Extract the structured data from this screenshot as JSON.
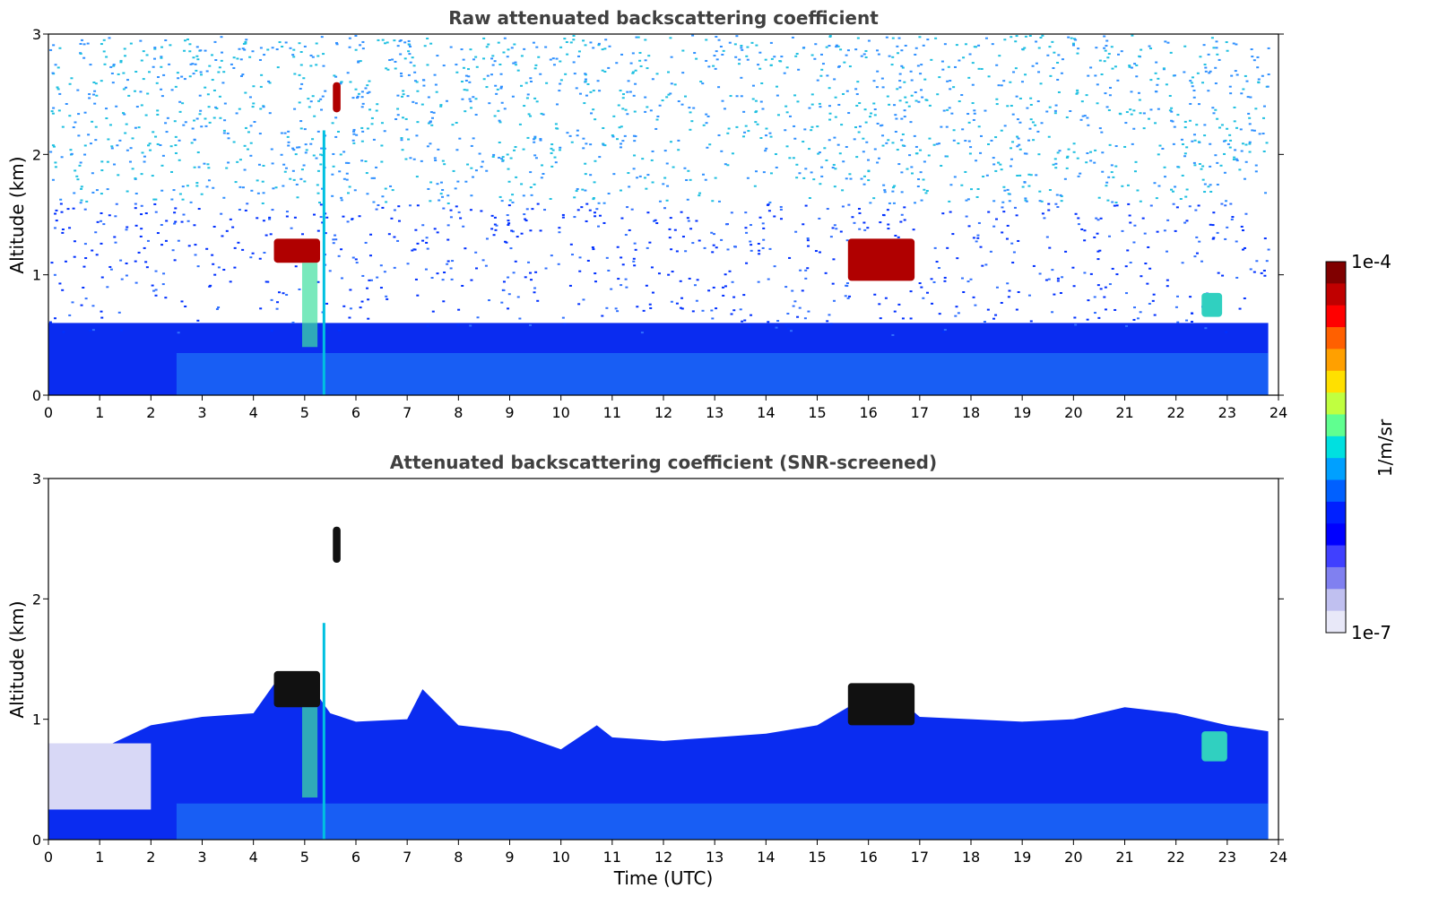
{
  "chart_data": [
    {
      "type": "heatmap",
      "title": "Raw attenuated backscattering coefficient",
      "xlabel": "",
      "ylabel": "Altitude (km)",
      "xlim": [
        0,
        24
      ],
      "ylim": [
        0,
        3
      ],
      "xticks": [
        "0",
        "1",
        "2",
        "3",
        "4",
        "5",
        "6",
        "7",
        "8",
        "9",
        "10",
        "11",
        "12",
        "13",
        "14",
        "15",
        "16",
        "17",
        "18",
        "19",
        "20",
        "21",
        "22",
        "23",
        "24"
      ],
      "yticks": [
        "0",
        "1",
        "2",
        "3"
      ],
      "colorscale": "jet (1e-7 to 1e-4, log)",
      "features": [
        {
          "time": [
            0,
            24
          ],
          "alt": [
            0,
            0.6
          ],
          "level": "low (1e-6)"
        },
        {
          "time": [
            4.4,
            5.3
          ],
          "alt": [
            1.1,
            1.3
          ],
          "level": "high (1e-4)"
        },
        {
          "time": [
            5.55,
            5.7
          ],
          "alt": [
            2.35,
            2.6
          ],
          "level": "high (1e-4)"
        },
        {
          "time": [
            15.6,
            16.9
          ],
          "alt": [
            0.95,
            1.3
          ],
          "level": "high (1e-4)"
        },
        {
          "time": [
            22.5,
            22.9
          ],
          "alt": [
            0.65,
            0.85
          ],
          "level": "medium (1e-5)"
        }
      ]
    },
    {
      "type": "heatmap",
      "title": "Attenuated backscattering coefficient (SNR-screened)",
      "xlabel": "Time (UTC)",
      "ylabel": "Altitude (km)",
      "xlim": [
        0,
        24
      ],
      "ylim": [
        0,
        3
      ],
      "xticks": [
        "0",
        "1",
        "2",
        "3",
        "4",
        "5",
        "6",
        "7",
        "8",
        "9",
        "10",
        "11",
        "12",
        "13",
        "14",
        "15",
        "16",
        "17",
        "18",
        "19",
        "20",
        "21",
        "22",
        "23",
        "24"
      ],
      "yticks": [
        "0",
        "1",
        "2",
        "3"
      ],
      "colorscale": "jet (1e-7 to 1e-4, log)",
      "boundary_layer_top_km": [
        [
          0,
          0.7
        ],
        [
          1,
          0.75
        ],
        [
          2,
          0.95
        ],
        [
          3,
          1.02
        ],
        [
          4,
          1.05
        ],
        [
          4.5,
          1.35
        ],
        [
          5,
          1.35
        ],
        [
          5.5,
          1.05
        ],
        [
          6,
          0.98
        ],
        [
          7,
          1.0
        ],
        [
          7.3,
          1.25
        ],
        [
          8,
          0.95
        ],
        [
          9,
          0.9
        ],
        [
          10,
          0.75
        ],
        [
          10.7,
          0.95
        ],
        [
          11,
          0.85
        ],
        [
          12,
          0.82
        ],
        [
          13,
          0.85
        ],
        [
          14,
          0.88
        ],
        [
          15,
          0.95
        ],
        [
          15.6,
          1.1
        ],
        [
          16.5,
          1.2
        ],
        [
          17,
          1.02
        ],
        [
          18,
          1.0
        ],
        [
          19,
          0.98
        ],
        [
          20,
          1.0
        ],
        [
          21,
          1.1
        ],
        [
          22,
          1.05
        ],
        [
          23,
          0.95
        ],
        [
          23.8,
          0.9
        ]
      ],
      "features": [
        {
          "time": [
            4.4,
            5.3
          ],
          "alt": [
            1.1,
            1.4
          ],
          "level": "saturated"
        },
        {
          "time": [
            5.55,
            5.7
          ],
          "alt": [
            2.3,
            2.6
          ],
          "level": "saturated"
        },
        {
          "time": [
            15.6,
            16.9
          ],
          "alt": [
            0.95,
            1.3
          ],
          "level": "saturated"
        },
        {
          "time": [
            22.5,
            23.0
          ],
          "alt": [
            0.65,
            0.9
          ],
          "level": "medium (1e-5)"
        }
      ]
    }
  ],
  "colorbar": {
    "max_label": "1e-4",
    "min_label": "1e-7",
    "unit_label": "1/m/sr",
    "colors": [
      "#800000",
      "#c00000",
      "#ff0000",
      "#ff6000",
      "#ffa000",
      "#ffe000",
      "#c0ff40",
      "#60ff90",
      "#00e0e0",
      "#00a0ff",
      "#0060ff",
      "#0020ff",
      "#0000ff",
      "#4040ff",
      "#8080f0",
      "#c0c0f0",
      "#e8e8f8"
    ]
  }
}
